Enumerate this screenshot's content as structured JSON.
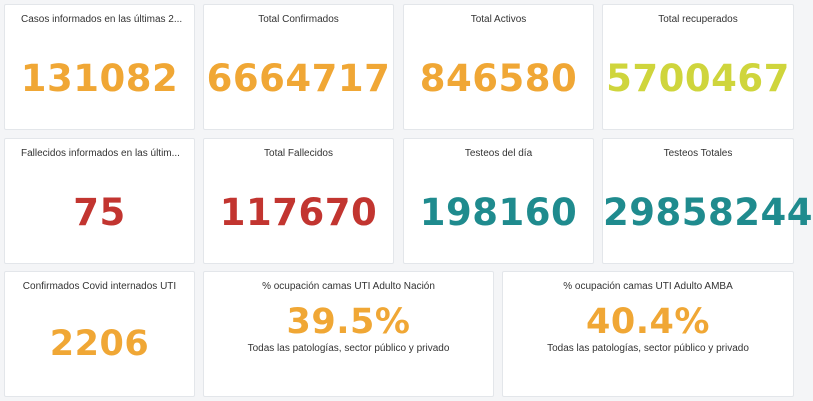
{
  "colors": {
    "orange": "#f0a735",
    "green": "#cfd53c",
    "red": "#c23530",
    "teal": "#1f8b8e"
  },
  "cards": [
    {
      "title": "Casos informados en las últimas 2...",
      "value": "131082",
      "color": "orange"
    },
    {
      "title": "Total Confirmados",
      "value": "6664717",
      "color": "orange"
    },
    {
      "title": "Total Activos",
      "value": "846580",
      "color": "orange"
    },
    {
      "title": "Total recuperados",
      "value": "5700467",
      "color": "green"
    },
    {
      "title": "Fallecidos informados en las últim...",
      "value": "75",
      "color": "red"
    },
    {
      "title": "Total Fallecidos",
      "value": "117670",
      "color": "red"
    },
    {
      "title": "Testeos del día",
      "value": "198160",
      "color": "teal"
    },
    {
      "title": "Testeos Totales",
      "value": "29858244",
      "color": "teal"
    },
    {
      "title": "Confirmados Covid internados UTI",
      "value": "2206",
      "color": "orange"
    },
    {
      "title": "% ocupación camas UTI Adulto Nación",
      "value": "39.5%",
      "subtitle": "Todas las patologías, sector público y privado",
      "color": "orange"
    },
    {
      "title": "% ocupación camas UTI Adulto AMBA",
      "value": "40.4%",
      "subtitle": "Todas las patologías, sector público y privado",
      "color": "orange"
    }
  ]
}
